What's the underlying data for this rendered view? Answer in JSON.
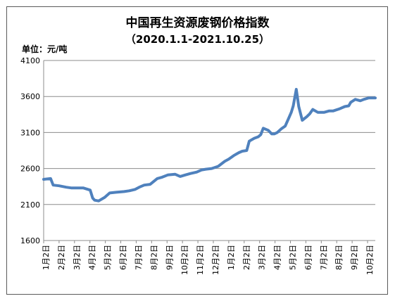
{
  "chart_data": {
    "type": "line",
    "title": "中国再生资源废钢价格指数",
    "subtitle": "（2020.1.1-2021.10.25）",
    "unit_label": "单位：元/吨",
    "xlabel": "",
    "ylabel": "",
    "ylim": [
      1600,
      4100
    ],
    "yticks": [
      1600,
      2100,
      2600,
      3100,
      3600,
      4100
    ],
    "grid": "horizontal",
    "legend": "none",
    "line_color": "#4f81bd",
    "x_tick_labels": [
      "1月2日",
      "2月2日",
      "3月2日",
      "4月2日",
      "5月2日",
      "6月2日",
      "7月2日",
      "8月2日",
      "9月2日",
      "10月2日",
      "11月2日",
      "12月2日",
      "1月2日",
      "2月2日",
      "3月2日",
      "4月2日",
      "5月2日",
      "6月2日",
      "7月2日",
      "8月2日",
      "9月2日",
      "10月2日"
    ],
    "series": [
      {
        "name": "",
        "x": [
          "2020-01-01",
          "2020-01-15",
          "2020-01-20",
          "2020-02-01",
          "2020-02-15",
          "2020-02-25",
          "2020-03-05",
          "2020-03-20",
          "2020-03-25",
          "2020-04-03",
          "2020-04-08",
          "2020-04-12",
          "2020-04-20",
          "2020-05-02",
          "2020-05-12",
          "2020-05-25",
          "2020-06-10",
          "2020-06-20",
          "2020-07-02",
          "2020-07-10",
          "2020-07-20",
          "2020-08-01",
          "2020-08-15",
          "2020-08-25",
          "2020-09-05",
          "2020-09-20",
          "2020-09-30",
          "2020-10-10",
          "2020-10-20",
          "2020-11-02",
          "2020-11-12",
          "2020-11-20",
          "2020-12-02",
          "2020-12-15",
          "2020-12-28",
          "2021-01-05",
          "2021-01-15",
          "2021-01-25",
          "2021-02-01",
          "2021-02-10",
          "2021-02-15",
          "2021-02-25",
          "2021-03-05",
          "2021-03-10",
          "2021-03-15",
          "2021-03-25",
          "2021-04-01",
          "2021-04-06",
          "2021-04-12",
          "2021-04-20",
          "2021-04-28",
          "2021-05-05",
          "2021-05-10",
          "2021-05-14",
          "2021-05-20",
          "2021-05-25",
          "2021-06-01",
          "2021-06-10",
          "2021-06-16",
          "2021-06-22",
          "2021-07-02",
          "2021-07-15",
          "2021-07-25",
          "2021-08-02",
          "2021-08-15",
          "2021-08-25",
          "2021-09-02",
          "2021-09-06",
          "2021-09-15",
          "2021-09-25",
          "2021-10-02",
          "2021-10-12",
          "2021-10-25"
        ],
        "values": [
          2450,
          2460,
          2370,
          2360,
          2340,
          2330,
          2330,
          2330,
          2320,
          2300,
          2190,
          2160,
          2150,
          2200,
          2260,
          2270,
          2280,
          2290,
          2310,
          2340,
          2370,
          2380,
          2460,
          2480,
          2510,
          2520,
          2490,
          2510,
          2530,
          2550,
          2580,
          2590,
          2600,
          2630,
          2700,
          2730,
          2780,
          2820,
          2840,
          2850,
          2980,
          3020,
          3040,
          3070,
          3160,
          3130,
          3080,
          3080,
          3100,
          3150,
          3190,
          3300,
          3380,
          3470,
          3700,
          3460,
          3270,
          3320,
          3360,
          3420,
          3380,
          3380,
          3400,
          3400,
          3430,
          3460,
          3470,
          3520,
          3560,
          3540,
          3560,
          3580,
          3580
        ]
      }
    ]
  }
}
